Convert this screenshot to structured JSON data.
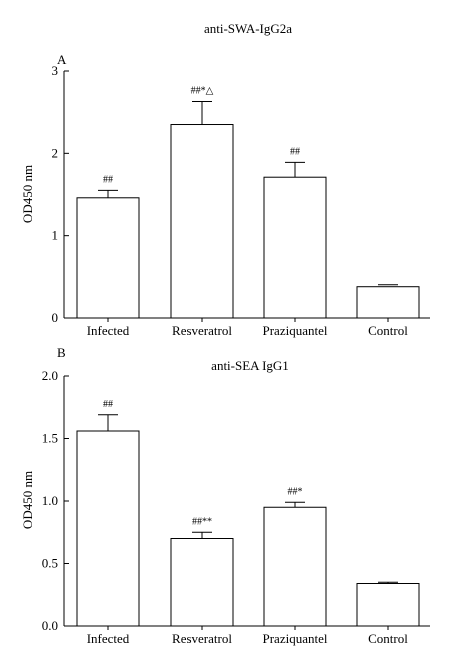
{
  "chart_data": [
    {
      "type": "bar",
      "panel_label": "A",
      "title": "anti-SWA-IgG2a",
      "xlabel": "",
      "ylabel": "OD450 nm",
      "ylim": [
        0,
        3
      ],
      "yticks": [
        "0",
        "1",
        "2",
        "3"
      ],
      "categories": [
        "Infected",
        "Resveratrol",
        "Praziquantel",
        "Control"
      ],
      "values": [
        1.46,
        2.35,
        1.71,
        0.38
      ],
      "errors": [
        0.09,
        0.28,
        0.18,
        0.0
      ],
      "annotations": [
        "##",
        "##*△",
        "##",
        ""
      ]
    },
    {
      "type": "bar",
      "panel_label": "B",
      "title": "anti-SEA IgG1",
      "xlabel": "",
      "ylabel": "OD450 nm",
      "ylim": [
        0,
        2.0
      ],
      "yticks": [
        "0.0",
        "0.5",
        "1.0",
        "1.5",
        "2.0"
      ],
      "categories": [
        "Infected",
        "Resveratrol",
        "Praziquantel",
        "Control"
      ],
      "values": [
        1.56,
        0.7,
        0.95,
        0.34
      ],
      "errors": [
        0.13,
        0.05,
        0.04,
        0.01
      ],
      "annotations": [
        "##",
        "##**",
        "##*",
        ""
      ]
    }
  ]
}
